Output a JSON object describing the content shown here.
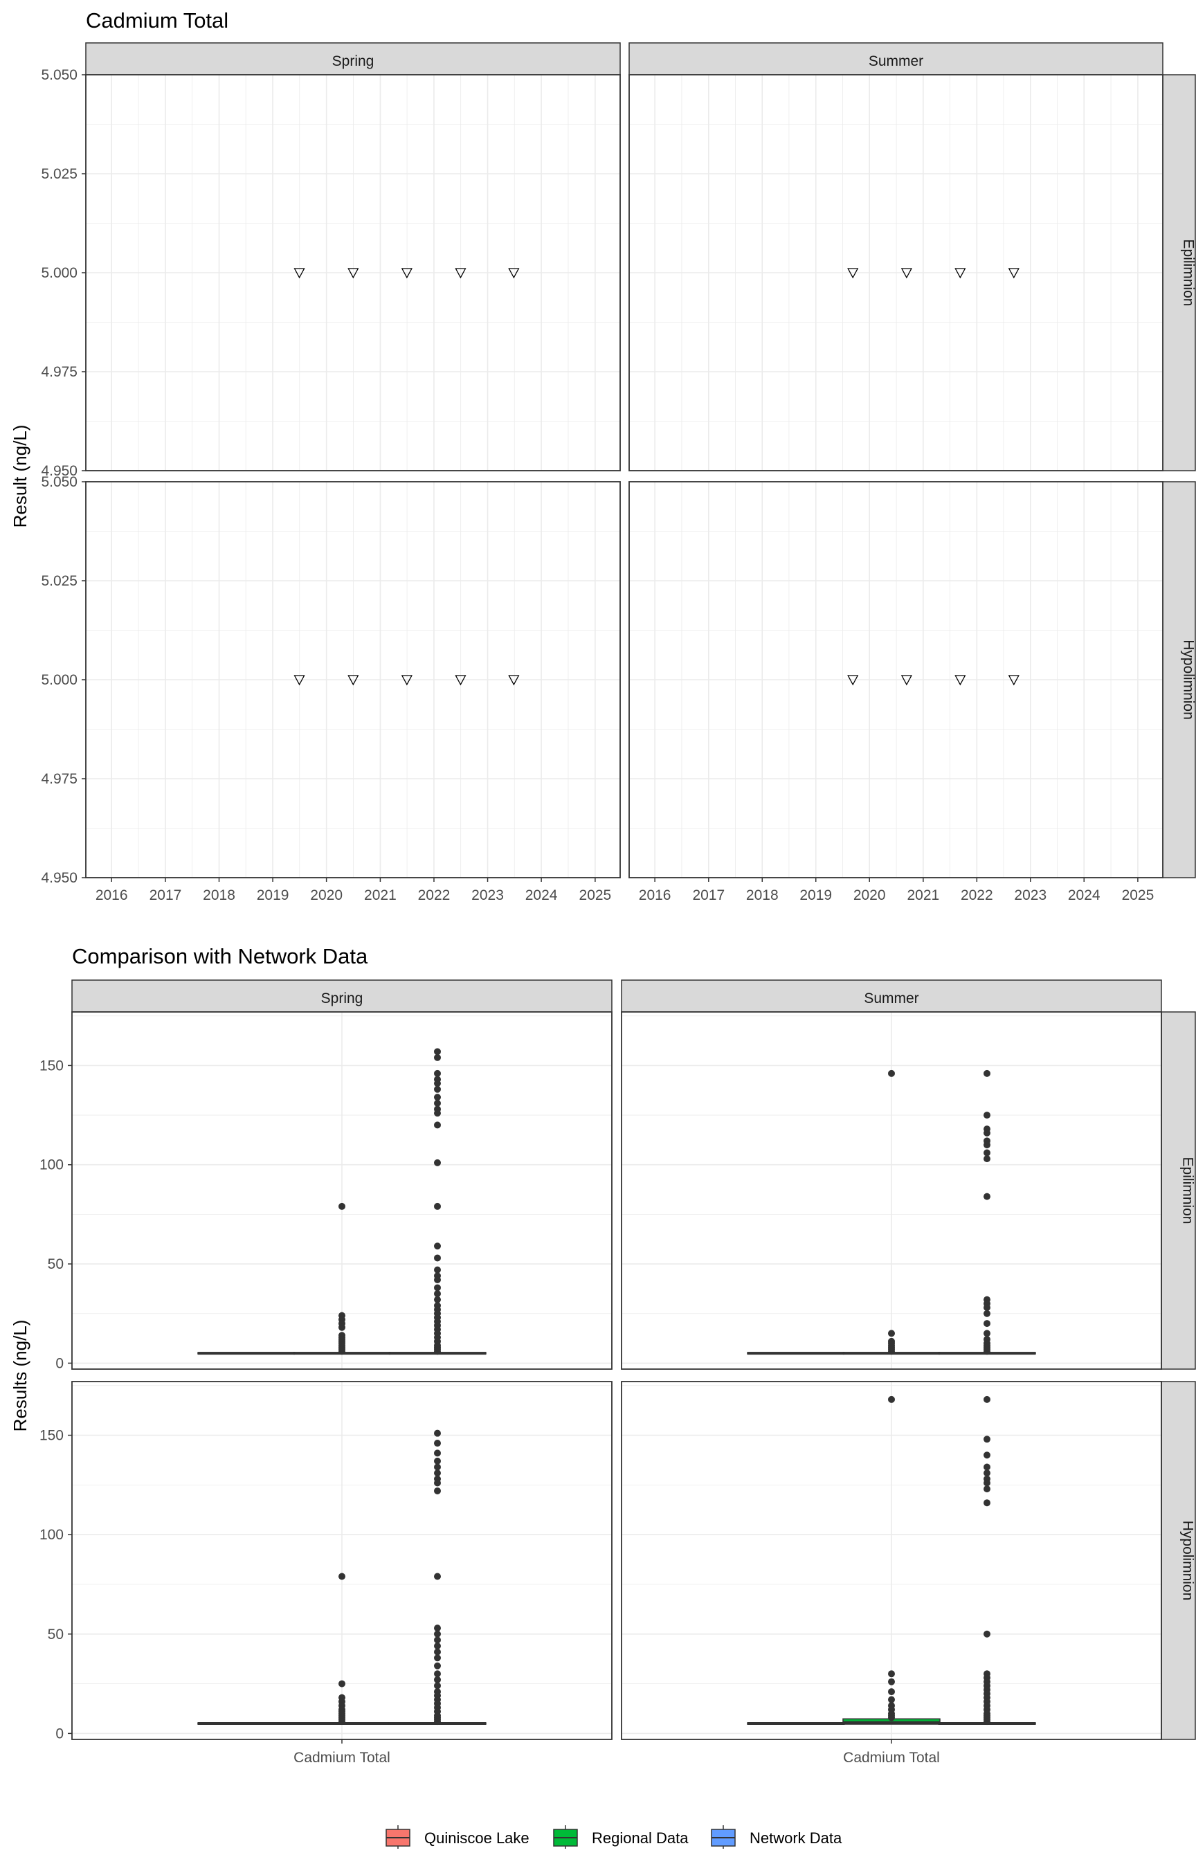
{
  "chart_data": [
    {
      "type": "scatter",
      "title": "Cadmium Total",
      "ylabel": "Result (ng/L)",
      "xlabel": "",
      "ylim": [
        4.95,
        5.05
      ],
      "y_ticks": [
        "4.950",
        "4.975",
        "5.000",
        "5.025",
        "5.050"
      ],
      "x_ticks": [
        "2016",
        "2017",
        "2018",
        "2019",
        "2020",
        "2021",
        "2022",
        "2023",
        "2024",
        "2025"
      ],
      "xlim": [
        "2015-07-10",
        "2025-06-20"
      ],
      "columns": [
        "Spring",
        "Summer"
      ],
      "rows": [
        "Epilimnion",
        "Hypolimnion"
      ],
      "marker": "open-down-triangle",
      "grid": true,
      "panels": [
        {
          "column": "Spring",
          "row": "Epilimnion",
          "points": [
            {
              "x": "2019-07-01",
              "y": 5.0
            },
            {
              "x": "2020-07-01",
              "y": 5.0
            },
            {
              "x": "2021-07-01",
              "y": 5.0
            },
            {
              "x": "2022-07-01",
              "y": 5.0
            },
            {
              "x": "2023-06-28",
              "y": 5.0
            }
          ]
        },
        {
          "column": "Summer",
          "row": "Epilimnion",
          "points": [
            {
              "x": "2019-09-10",
              "y": 5.0
            },
            {
              "x": "2020-09-10",
              "y": 5.0
            },
            {
              "x": "2021-09-10",
              "y": 5.0
            },
            {
              "x": "2022-09-10",
              "y": 5.0
            }
          ]
        },
        {
          "column": "Spring",
          "row": "Hypolimnion",
          "points": [
            {
              "x": "2019-07-01",
              "y": 5.0
            },
            {
              "x": "2020-07-01",
              "y": 5.0
            },
            {
              "x": "2021-07-01",
              "y": 5.0
            },
            {
              "x": "2022-07-01",
              "y": 5.0
            },
            {
              "x": "2023-06-28",
              "y": 5.0
            }
          ]
        },
        {
          "column": "Summer",
          "row": "Hypolimnion",
          "points": [
            {
              "x": "2019-09-10",
              "y": 5.0
            },
            {
              "x": "2020-09-10",
              "y": 5.0
            },
            {
              "x": "2021-09-10",
              "y": 5.0
            },
            {
              "x": "2022-09-10",
              "y": 5.0
            }
          ]
        }
      ]
    },
    {
      "type": "box",
      "title": "Comparison with Network Data",
      "ylabel": "Results (ng/L)",
      "xlabel": "",
      "category": "Cadmium Total",
      "ylim": [
        -3,
        177
      ],
      "y_ticks": [
        0,
        50,
        100,
        150
      ],
      "columns": [
        "Spring",
        "Summer"
      ],
      "rows": [
        "Epilimnion",
        "Hypolimnion"
      ],
      "grid": true,
      "legend": {
        "position": "bottom",
        "items": [
          {
            "name": "Quiniscoe Lake",
            "color": "#F8766D"
          },
          {
            "name": "Regional Data",
            "color": "#00BA38"
          },
          {
            "name": "Network Data",
            "color": "#619CFF"
          }
        ]
      },
      "panels": [
        {
          "column": "Spring",
          "row": "Epilimnion",
          "groups": [
            {
              "name": "Quiniscoe Lake",
              "q1": 5,
              "median": 5,
              "q3": 5,
              "lower": 5,
              "upper": 5,
              "outliers": []
            },
            {
              "name": "Regional Data",
              "q1": 5,
              "median": 5,
              "q3": 5,
              "lower": 5,
              "upper": 5,
              "outliers": [
                79,
                24,
                22,
                20,
                18,
                14,
                13,
                12,
                11,
                10,
                9,
                8,
                7,
                6
              ]
            },
            {
              "name": "Network Data",
              "q1": 5,
              "median": 5,
              "q3": 5,
              "lower": 5,
              "upper": 5,
              "outliers": [
                157,
                154,
                146,
                143,
                141,
                138,
                134,
                131,
                128,
                126,
                120,
                101,
                79,
                59,
                53,
                47,
                44,
                42,
                38,
                35,
                32,
                29,
                27,
                25,
                23,
                21,
                19,
                17,
                15,
                13,
                11,
                9,
                8,
                7,
                6
              ]
            }
          ]
        },
        {
          "column": "Summer",
          "row": "Epilimnion",
          "groups": [
            {
              "name": "Quiniscoe Lake",
              "q1": 5,
              "median": 5,
              "q3": 5,
              "lower": 5,
              "upper": 5,
              "outliers": []
            },
            {
              "name": "Regional Data",
              "q1": 5,
              "median": 5,
              "q3": 5,
              "lower": 5,
              "upper": 5,
              "outliers": [
                146,
                15,
                11,
                10,
                9,
                8,
                7,
                6
              ]
            },
            {
              "name": "Network Data",
              "q1": 5,
              "median": 5,
              "q3": 5,
              "lower": 5,
              "upper": 5,
              "outliers": [
                146,
                125,
                118,
                116,
                112,
                110,
                106,
                103,
                84,
                32,
                30,
                28,
                25,
                20,
                15,
                12,
                10,
                9,
                8,
                7,
                6
              ]
            }
          ]
        },
        {
          "column": "Spring",
          "row": "Hypolimnion",
          "groups": [
            {
              "name": "Quiniscoe Lake",
              "q1": 5,
              "median": 5,
              "q3": 5,
              "lower": 5,
              "upper": 5,
              "outliers": []
            },
            {
              "name": "Regional Data",
              "q1": 5,
              "median": 5,
              "q3": 5,
              "lower": 5,
              "upper": 5,
              "outliers": [
                79,
                25,
                18,
                16,
                14,
                12,
                11,
                10,
                9,
                8,
                7,
                6
              ]
            },
            {
              "name": "Network Data",
              "q1": 5,
              "median": 5,
              "q3": 5,
              "lower": 5,
              "upper": 5,
              "outliers": [
                151,
                146,
                141,
                137,
                134,
                131,
                128,
                126,
                122,
                79,
                53,
                50,
                47,
                44,
                41,
                38,
                34,
                30,
                27,
                24,
                21,
                19,
                17,
                15,
                13,
                11,
                9,
                8,
                7,
                6
              ]
            }
          ]
        },
        {
          "column": "Summer",
          "row": "Hypolimnion",
          "groups": [
            {
              "name": "Quiniscoe Lake",
              "q1": 5,
              "median": 5,
              "q3": 5,
              "lower": 5,
              "upper": 5,
              "outliers": []
            },
            {
              "name": "Regional Data",
              "q1": 5,
              "median": 5.5,
              "q3": 7,
              "lower": 5,
              "upper": 7,
              "outliers": [
                168,
                30,
                26,
                21,
                17,
                14,
                12,
                10,
                9,
                8
              ]
            },
            {
              "name": "Network Data",
              "q1": 5,
              "median": 5,
              "q3": 5,
              "lower": 5,
              "upper": 5,
              "outliers": [
                168,
                148,
                140,
                134,
                131,
                128,
                126,
                123,
                116,
                50,
                30,
                28,
                26,
                24,
                22,
                20,
                18,
                16,
                14,
                12,
                10,
                9,
                8,
                7,
                6
              ]
            }
          ]
        }
      ]
    }
  ]
}
